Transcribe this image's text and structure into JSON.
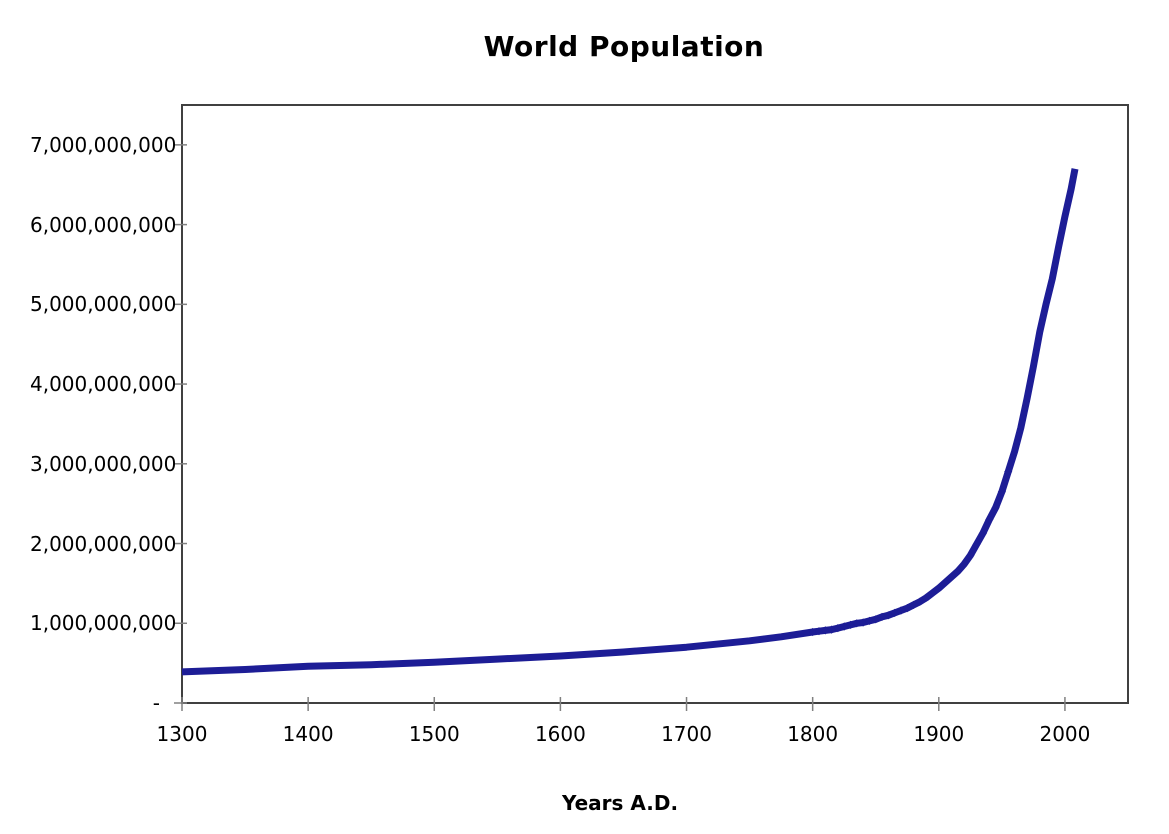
{
  "title": "World Population",
  "colors": {
    "series_line": "#1d1d96",
    "plot_border": "#404040",
    "tick_mark": "#808080",
    "text": "#000000",
    "background": "#ffffff"
  },
  "chart_data": {
    "type": "line",
    "title": "World Population",
    "xlabel": "Years A.D.",
    "ylabel": "",
    "grid": false,
    "legend": false,
    "xlim": [
      1300,
      2050
    ],
    "ylim": [
      0,
      7500000000
    ],
    "x_ticks": [
      {
        "value": 1300,
        "label": "1300"
      },
      {
        "value": 1400,
        "label": "1400"
      },
      {
        "value": 1500,
        "label": "1500"
      },
      {
        "value": 1600,
        "label": "1600"
      },
      {
        "value": 1700,
        "label": "1700"
      },
      {
        "value": 1800,
        "label": "1800"
      },
      {
        "value": 1900,
        "label": "1900"
      },
      {
        "value": 2000,
        "label": "2000"
      }
    ],
    "y_ticks": [
      {
        "value": 7000000000,
        "label": "7,000,000,000"
      },
      {
        "value": 6000000000,
        "label": "6,000,000,000"
      },
      {
        "value": 5000000000,
        "label": "5,000,000,000"
      },
      {
        "value": 4000000000,
        "label": "4,000,000,000"
      },
      {
        "value": 3000000000,
        "label": "3,000,000,000"
      },
      {
        "value": 2000000000,
        "label": "2,000,000,000"
      },
      {
        "value": 1000000000,
        "label": "1,000,000,000"
      },
      {
        "value": 0,
        "label": "-"
      }
    ],
    "series": [
      {
        "name": "World Population",
        "color": "#1d1d96",
        "line_width": 7,
        "marker": "diamond",
        "marker_year_range": [
          1800,
          1955
        ],
        "points": [
          [
            1300,
            390000000
          ],
          [
            1350,
            420000000
          ],
          [
            1400,
            460000000
          ],
          [
            1450,
            480000000
          ],
          [
            1500,
            510000000
          ],
          [
            1550,
            550000000
          ],
          [
            1600,
            590000000
          ],
          [
            1650,
            640000000
          ],
          [
            1700,
            700000000
          ],
          [
            1750,
            780000000
          ],
          [
            1775,
            830000000
          ],
          [
            1800,
            890000000
          ],
          [
            1805,
            900000000
          ],
          [
            1810,
            910000000
          ],
          [
            1815,
            920000000
          ],
          [
            1820,
            940000000
          ],
          [
            1825,
            960000000
          ],
          [
            1830,
            980000000
          ],
          [
            1835,
            1000000000
          ],
          [
            1840,
            1010000000
          ],
          [
            1845,
            1030000000
          ],
          [
            1850,
            1050000000
          ],
          [
            1855,
            1080000000
          ],
          [
            1860,
            1100000000
          ],
          [
            1865,
            1130000000
          ],
          [
            1870,
            1160000000
          ],
          [
            1875,
            1190000000
          ],
          [
            1880,
            1230000000
          ],
          [
            1885,
            1270000000
          ],
          [
            1890,
            1320000000
          ],
          [
            1895,
            1380000000
          ],
          [
            1900,
            1440000000
          ],
          [
            1905,
            1510000000
          ],
          [
            1910,
            1580000000
          ],
          [
            1915,
            1650000000
          ],
          [
            1920,
            1740000000
          ],
          [
            1925,
            1850000000
          ],
          [
            1930,
            1990000000
          ],
          [
            1935,
            2130000000
          ],
          [
            1940,
            2300000000
          ],
          [
            1945,
            2450000000
          ],
          [
            1950,
            2650000000
          ],
          [
            1955,
            2900000000
          ],
          [
            1960,
            3150000000
          ],
          [
            1965,
            3450000000
          ],
          [
            1970,
            3820000000
          ],
          [
            1975,
            4220000000
          ],
          [
            1980,
            4650000000
          ],
          [
            1985,
            5000000000
          ],
          [
            1990,
            5320000000
          ],
          [
            1995,
            5720000000
          ],
          [
            2000,
            6100000000
          ],
          [
            2005,
            6450000000
          ],
          [
            2008,
            6700000000
          ]
        ]
      }
    ]
  }
}
